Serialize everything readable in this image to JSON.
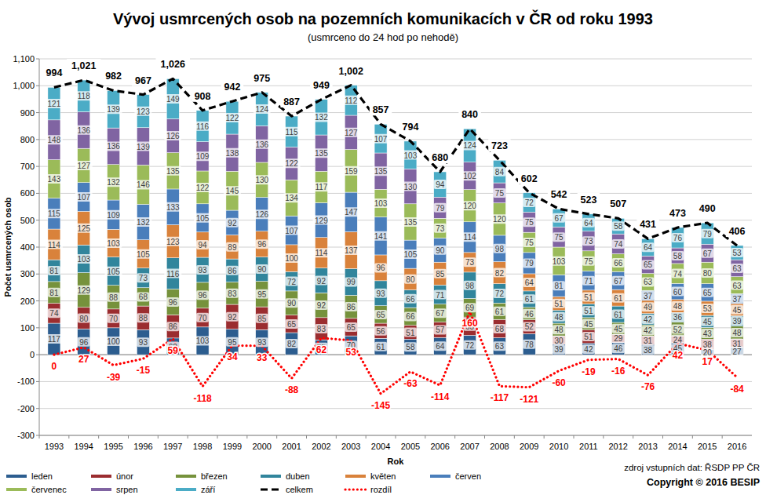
{
  "chart_data": {
    "type": "bar",
    "title": "Vývoj usmrcených osob na pozemních komunikacích v ČR od roku 1993",
    "subtitle": "(usmrceno do 24 hod po nehodě)",
    "x_label": "Rok",
    "y_label": "Počet usmrcených osob",
    "annotations": [
      "zdroj vstupních dat: ŘSDP PP ČR",
      "Copyright © 2016 BESIP"
    ],
    "categories": [
      "1993",
      "1994",
      "1995",
      "1996",
      "1997",
      "1998",
      "1999",
      "2000",
      "2001",
      "2002",
      "2003",
      "2004",
      "2005",
      "2006",
      "2007",
      "2008",
      "2009",
      "2010",
      "2011",
      "2012",
      "2013",
      "2014",
      "2015",
      "2016"
    ],
    "stacked": true,
    "grid": true,
    "legend": "bottom",
    "data_labels": true,
    "ylim": [
      -300,
      1100
    ],
    "yticks": [
      -300,
      -200,
      -100,
      0,
      100,
      200,
      300,
      400,
      500,
      600,
      700,
      800,
      900,
      {
        "value": 1000,
        "label": "1,000"
      },
      {
        "value": 1100,
        "label": "1,100"
      }
    ],
    "series": [
      {
        "name": "leden",
        "type": "bar",
        "color": "#2c5d8f",
        "values": [
          117,
          96,
          100,
          93,
          62,
          103,
          95,
          93,
          82,
          55,
          70,
          61,
          58,
          64,
          72,
          63,
          78,
          39,
          42,
          46,
          38,
          45,
          20,
          27
        ]
      },
      {
        "name": "únor",
        "type": "bar",
        "color": "#9b2d30",
        "values": [
          74,
          80,
          70,
          88,
          86,
          70,
          92,
          85,
          65,
          83,
          65,
          56,
          51,
          57,
          68,
          68,
          52,
          30,
          51,
          29,
          31,
          24,
          38,
          31
        ]
      },
      {
        "name": "březen",
        "type": "bar",
        "color": "#76923c",
        "values": [
          81,
          129,
          88,
          68,
          96,
          96,
          83,
          95,
          90,
          92,
          86,
          65,
          66,
          67,
          69,
          61,
          46,
          48,
          45,
          45,
          42,
          52,
          43,
          48
        ]
      },
      {
        "name": "duben",
        "type": "bar",
        "color": "#31859c",
        "values": [
          81,
          103,
          105,
          73,
          116,
          93,
          86,
          90,
          72,
          92,
          99,
          93,
          66,
          71,
          98,
          72,
          61,
          48,
          51,
          61,
          42,
          36,
          45,
          39
        ]
      },
      {
        "name": "květen",
        "type": "bar",
        "color": "#d9823b",
        "values": [
          114,
          125,
          103,
          105,
          123,
          94,
          89,
          96,
          100,
          114,
          137,
          96,
          80,
          85,
          73,
          82,
          64,
          51,
          51,
          61,
          49,
          48,
          53,
          45
        ]
      },
      {
        "name": "červen",
        "type": "bar",
        "color": "#4a7ebb",
        "values": [
          115,
          107,
          109,
          132,
          133,
          105,
          92,
          126,
          107,
          129,
          147,
          141,
          105,
          90,
          114,
          98,
          79,
          81,
          71,
          67,
          37,
          60,
          65,
          37
        ]
      },
      {
        "name": "červenec",
        "type": "bar",
        "color": "#9bbb59",
        "values": [
          143,
          127,
          132,
          146,
          135,
          122,
          145,
          130,
          134,
          117,
          159,
          103,
          135,
          73,
          120,
          120,
          75,
          103,
          75,
          66,
          63,
          74,
          80,
          63
        ]
      },
      {
        "name": "srpen",
        "type": "bar",
        "color": "#8064a2",
        "values": [
          148,
          136,
          136,
          139,
          126,
          109,
          138,
          136,
          122,
          135,
          127,
          135,
          130,
          79,
          102,
          75,
          75,
          75,
          73,
          74,
          65,
          58,
          67,
          63
        ]
      },
      {
        "name": "září",
        "type": "bar",
        "color": "#4bacc6",
        "values": [
          121,
          118,
          139,
          123,
          149,
          116,
          122,
          124,
          115,
          132,
          112,
          107,
          103,
          94,
          124,
          84,
          72,
          67,
          64,
          58,
          64,
          76,
          79,
          53
        ]
      },
      {
        "name": "celkem",
        "type": "line",
        "color": "#000000",
        "line_style": "dashed",
        "data_labels": true,
        "values": [
          994,
          1021,
          982,
          967,
          1026,
          908,
          942,
          975,
          887,
          949,
          1002,
          857,
          794,
          680,
          840,
          723,
          602,
          542,
          523,
          507,
          431,
          473,
          490,
          406
        ],
        "value_labels": [
          "994",
          "1,021",
          "982",
          "967",
          "1,026",
          "908",
          "942",
          "975",
          "887",
          "949",
          "1,002",
          "857",
          "794",
          "680",
          "840",
          "723",
          "602",
          "542",
          "523",
          "507",
          "431",
          "473",
          "490",
          "406"
        ]
      },
      {
        "name": "rozdíl",
        "type": "line",
        "color": "#ff0000",
        "line_style": "dotted",
        "data_labels": true,
        "values": [
          0,
          27,
          -39,
          -15,
          59,
          -118,
          34,
          33,
          -88,
          62,
          53,
          -145,
          -63,
          -114,
          160,
          -117,
          -121,
          -60,
          -19,
          -16,
          -76,
          42,
          17,
          -84
        ]
      }
    ]
  }
}
